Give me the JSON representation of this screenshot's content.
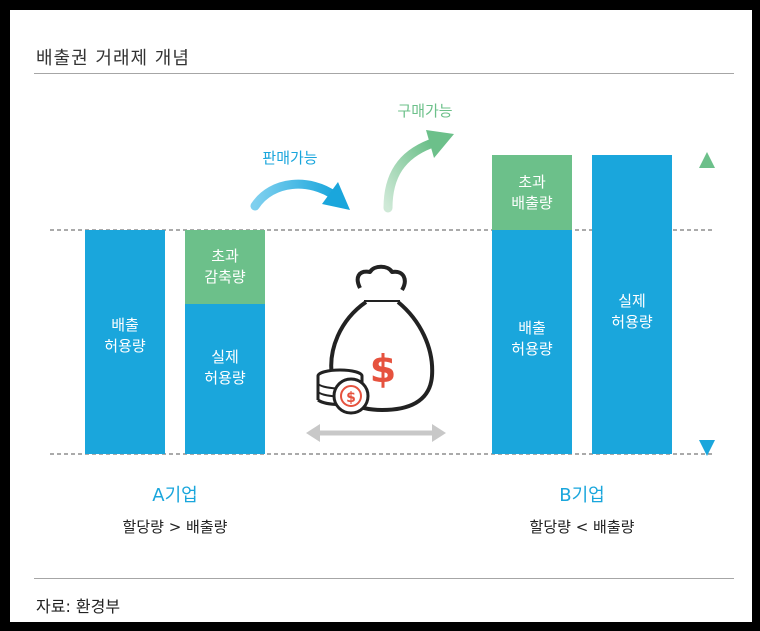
{
  "header": {
    "title": "배출권 거래제 개념"
  },
  "footer": {
    "source": "자료: 환경부"
  },
  "diagram": {
    "arrow_sell_label": "판매가능",
    "arrow_buy_label": "구매가능",
    "company_a": {
      "name": "A기업",
      "relation": "할당량 > 배출량",
      "bar1": {
        "line1": "배출",
        "line2": "허용량"
      },
      "bar2_top": {
        "line1": "초과",
        "line2": "감축량"
      },
      "bar2_bottom": {
        "line1": "실제",
        "line2": "허용량"
      }
    },
    "company_b": {
      "name": "B기업",
      "relation": "할당량 < 배출량",
      "bar1_top": {
        "line1": "초과",
        "line2": "배출량"
      },
      "bar1_bottom": {
        "line1": "배출",
        "line2": "허용량"
      },
      "bar2": {
        "line1": "실제",
        "line2": "허용량"
      }
    },
    "center_icon_symbol": "$",
    "colors": {
      "blue": "#1aa6dc",
      "green": "#6cc08a",
      "coin_red": "#e6523e",
      "dark": "#222222",
      "gray_arrow": "#c8c8c8"
    }
  }
}
